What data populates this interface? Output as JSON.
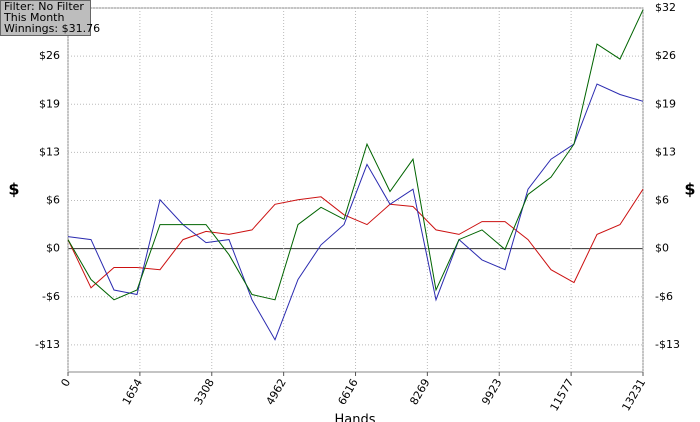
{
  "chart_data": {
    "type": "line",
    "legend": [
      "Filter: No Filter",
      "This Month",
      "Winnings: $31.76"
    ],
    "ylabel": "$",
    "y2label": "$",
    "xlabel": "Hands",
    "x": [
      0,
      529,
      1058,
      1588,
      2117,
      2646,
      3175,
      3704,
      4234,
      4763,
      5292,
      5821,
      6351,
      6880,
      7409,
      7938,
      8467,
      8997,
      9526,
      10055,
      10584,
      11113,
      11643,
      12172,
      12701,
      13231
    ],
    "series": [
      {
        "color": "#006400",
        "values": [
          1.2,
          -4.1,
          -6.8,
          -5.5,
          3.2,
          3.2,
          3.2,
          -0.8,
          -6.1,
          -6.8,
          3.2,
          5.5,
          3.9,
          13.9,
          7.6,
          11.9,
          -5.5,
          1.2,
          2.5,
          -0.1,
          7.2,
          9.5,
          13.9,
          27.2,
          25.2,
          31.76
        ]
      },
      {
        "color": "#2b2bb0",
        "values": [
          1.6,
          1.2,
          -5.5,
          -6.1,
          6.5,
          3.2,
          0.8,
          1.2,
          -6.8,
          -12.1,
          -4.1,
          0.5,
          3.2,
          11.2,
          5.9,
          7.9,
          -6.8,
          1.2,
          -1.5,
          -2.8,
          7.9,
          11.9,
          13.9,
          21.9,
          20.5,
          19.6
        ]
      },
      {
        "color": "#cc1111",
        "values": [
          1.2,
          -5.2,
          -2.5,
          -2.5,
          -2.8,
          1.2,
          2.3,
          1.9,
          2.5,
          5.9,
          6.5,
          6.9,
          4.5,
          3.2,
          5.9,
          5.6,
          2.5,
          1.9,
          3.6,
          3.6,
          1.2,
          -2.8,
          -4.5,
          1.9,
          3.2,
          7.9
        ]
      }
    ],
    "xlim": [
      0,
      13231
    ],
    "xticks": [
      0,
      1654,
      3308,
      4962,
      6616,
      8269,
      9923,
      11577,
      13231
    ],
    "ylim": [
      -16.4,
      32
    ],
    "yticks": [
      {
        "value": -12.8,
        "label": "-$13"
      },
      {
        "value": -6.4,
        "label": "-$6"
      },
      {
        "value": 0,
        "label": "$0"
      },
      {
        "value": 6.4,
        "label": "$6"
      },
      {
        "value": 12.8,
        "label": "$13"
      },
      {
        "value": 19.2,
        "label": "$19"
      },
      {
        "value": 25.6,
        "label": "$26"
      },
      {
        "value": 32,
        "label": "$32"
      }
    ],
    "grid": true
  }
}
